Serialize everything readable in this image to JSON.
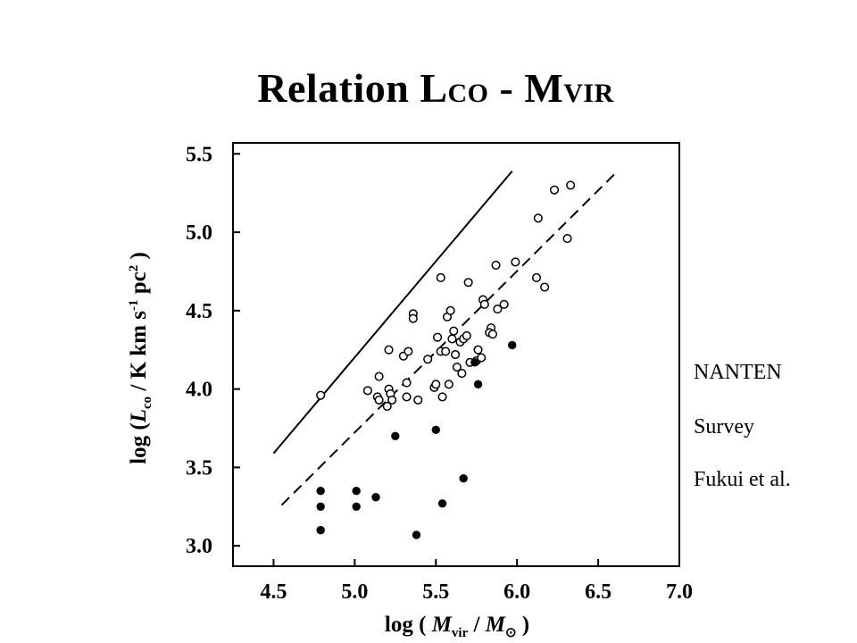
{
  "slide": {
    "title_word": "Relation ",
    "title_l": "L",
    "title_co": "CO",
    "title_dash": " - ",
    "title_m": "M",
    "title_vir": "VIR"
  },
  "annotation": {
    "line1": "NANTEN",
    "line2": "Survey",
    "line3": "Fukui et al."
  },
  "chart_data": {
    "type": "scatter",
    "xlabel_parts": {
      "open": "log ( ",
      "m": "M",
      "vir": "vir",
      "slash": " / ",
      "msun": "M",
      "sun": "⊙",
      "close": " )"
    },
    "ylabel_parts": {
      "open": "log (",
      "l": "L",
      "co": "co",
      "mid": " / K km s",
      "exp1": "-1",
      "pc": " pc",
      "exp2": "2",
      "close": " )"
    },
    "xlim": [
      4.25,
      7.0
    ],
    "ylim": [
      2.87,
      5.57
    ],
    "xticks": [
      "4.5",
      "5.0",
      "5.5",
      "6.0",
      "6.5",
      "7.0"
    ],
    "yticks": [
      "3.0",
      "3.5",
      "4.0",
      "4.5",
      "5.0",
      "5.5"
    ],
    "grid": false,
    "series": [
      {
        "marker": "open-circle",
        "points": [
          [
            4.79,
            3.96
          ],
          [
            5.08,
            3.99
          ],
          [
            5.15,
            4.08
          ],
          [
            5.14,
            3.95
          ],
          [
            5.15,
            3.93
          ],
          [
            5.21,
            4.0
          ],
          [
            5.22,
            3.97
          ],
          [
            5.2,
            3.89
          ],
          [
            5.23,
            3.93
          ],
          [
            5.21,
            4.25
          ],
          [
            5.3,
            4.21
          ],
          [
            5.33,
            4.24
          ],
          [
            5.32,
            4.04
          ],
          [
            5.32,
            3.95
          ],
          [
            5.36,
            4.48
          ],
          [
            5.36,
            4.45
          ],
          [
            5.39,
            3.93
          ],
          [
            5.45,
            4.19
          ],
          [
            5.49,
            4.01
          ],
          [
            5.5,
            4.03
          ],
          [
            5.51,
            4.33
          ],
          [
            5.53,
            4.71
          ],
          [
            5.53,
            4.24
          ],
          [
            5.54,
            3.95
          ],
          [
            5.56,
            4.24
          ],
          [
            5.57,
            4.46
          ],
          [
            5.59,
            4.5
          ],
          [
            5.58,
            4.03
          ],
          [
            5.6,
            4.32
          ],
          [
            5.61,
            4.37
          ],
          [
            5.62,
            4.22
          ],
          [
            5.63,
            4.14
          ],
          [
            5.66,
            4.1
          ],
          [
            5.65,
            4.3
          ],
          [
            5.67,
            4.32
          ],
          [
            5.69,
            4.34
          ],
          [
            5.7,
            4.68
          ],
          [
            5.71,
            4.17
          ],
          [
            5.75,
            4.18
          ],
          [
            5.76,
            4.25
          ],
          [
            5.78,
            4.2
          ],
          [
            5.79,
            4.57
          ],
          [
            5.8,
            4.54
          ],
          [
            5.84,
            4.39
          ],
          [
            5.83,
            4.36
          ],
          [
            5.85,
            4.35
          ],
          [
            5.87,
            4.79
          ],
          [
            5.88,
            4.51
          ],
          [
            5.92,
            4.54
          ],
          [
            5.99,
            4.81
          ],
          [
            6.12,
            4.71
          ],
          [
            6.13,
            5.09
          ],
          [
            6.17,
            4.65
          ],
          [
            6.23,
            5.27
          ],
          [
            6.31,
            4.96
          ],
          [
            6.33,
            5.3
          ]
        ]
      },
      {
        "marker": "filled-circle",
        "points": [
          [
            4.79,
            3.35
          ],
          [
            4.79,
            3.25
          ],
          [
            4.79,
            3.1
          ],
          [
            5.01,
            3.35
          ],
          [
            5.01,
            3.25
          ],
          [
            5.13,
            3.31
          ],
          [
            5.25,
            3.7
          ],
          [
            5.38,
            3.07
          ],
          [
            5.5,
            3.74
          ],
          [
            5.54,
            3.27
          ],
          [
            5.67,
            3.43
          ],
          [
            5.74,
            4.17
          ],
          [
            5.76,
            4.03
          ],
          [
            5.97,
            4.28
          ]
        ]
      }
    ],
    "lines": [
      {
        "style": "solid",
        "points": [
          [
            4.5,
            3.59
          ],
          [
            5.97,
            5.39
          ]
        ]
      },
      {
        "style": "dashed",
        "points": [
          [
            4.55,
            3.26
          ],
          [
            6.6,
            5.37
          ]
        ]
      }
    ]
  }
}
